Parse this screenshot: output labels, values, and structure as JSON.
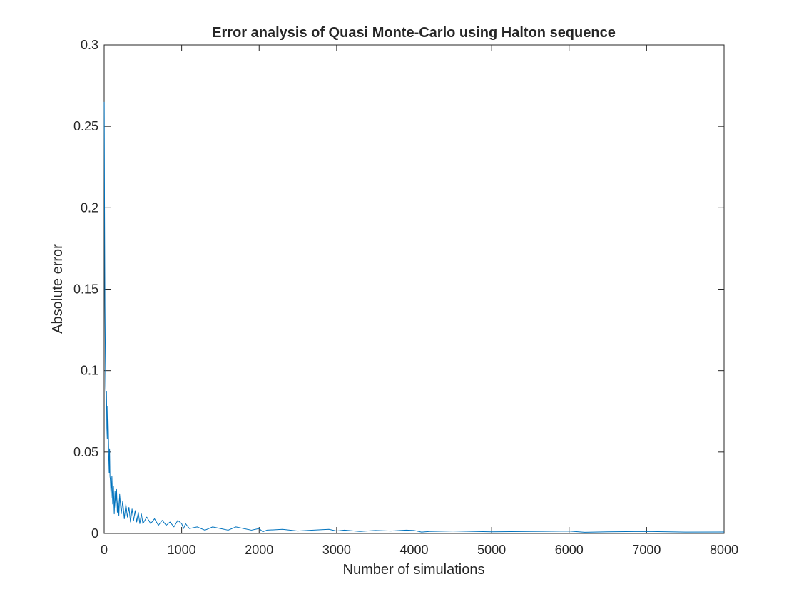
{
  "chart_data": {
    "type": "line",
    "title": "Error analysis of Quasi Monte-Carlo using Halton sequence",
    "xlabel": "Number of simulations",
    "ylabel": "Absolute error",
    "xlim": [
      0,
      8000
    ],
    "ylim": [
      0,
      0.3
    ],
    "grid": false,
    "legend": "none",
    "x_ticks": [
      0,
      1000,
      2000,
      3000,
      4000,
      5000,
      6000,
      7000,
      8000
    ],
    "x_tick_labels": [
      "0",
      "1000",
      "2000",
      "3000",
      "4000",
      "5000",
      "6000",
      "7000",
      "8000"
    ],
    "y_ticks": [
      0,
      0.05,
      0.1,
      0.15,
      0.2,
      0.25,
      0.3
    ],
    "y_tick_labels": [
      "0",
      "0.05",
      "0.1",
      "0.15",
      "0.2",
      "0.25",
      "0.3"
    ],
    "series": [
      {
        "color": "#0072BD",
        "x": [
          1,
          5,
          10,
          15,
          20,
          25,
          30,
          35,
          40,
          45,
          50,
          55,
          60,
          65,
          70,
          75,
          80,
          90,
          100,
          110,
          120,
          130,
          140,
          150,
          160,
          170,
          180,
          190,
          200,
          220,
          240,
          260,
          280,
          300,
          320,
          340,
          360,
          380,
          400,
          420,
          440,
          460,
          480,
          500,
          550,
          600,
          650,
          700,
          750,
          800,
          850,
          900,
          950,
          1000,
          1024,
          1050,
          1100,
          1200,
          1300,
          1400,
          1500,
          1600,
          1700,
          1800,
          1900,
          2000,
          2048,
          2100,
          2300,
          2500,
          2700,
          2900,
          3000,
          3100,
          3300,
          3500,
          3700,
          3900,
          4000,
          4096,
          4200,
          4500,
          5000,
          5500,
          6000,
          6200,
          6500,
          7000,
          7500,
          8000
        ],
        "values": [
          0.265,
          0.2,
          0.14,
          0.11,
          0.09,
          0.083,
          0.087,
          0.065,
          0.058,
          0.078,
          0.072,
          0.062,
          0.045,
          0.037,
          0.052,
          0.035,
          0.033,
          0.022,
          0.035,
          0.018,
          0.029,
          0.012,
          0.026,
          0.016,
          0.027,
          0.013,
          0.022,
          0.011,
          0.024,
          0.012,
          0.02,
          0.009,
          0.018,
          0.01,
          0.016,
          0.007,
          0.015,
          0.008,
          0.014,
          0.007,
          0.013,
          0.006,
          0.012,
          0.006,
          0.01,
          0.006,
          0.009,
          0.005,
          0.008,
          0.005,
          0.007,
          0.004,
          0.008,
          0.006,
          0.003,
          0.006,
          0.003,
          0.004,
          0.002,
          0.004,
          0.003,
          0.002,
          0.004,
          0.003,
          0.002,
          0.003,
          0.001,
          0.002,
          0.0025,
          0.0015,
          0.002,
          0.0025,
          0.0015,
          0.002,
          0.0012,
          0.0018,
          0.0015,
          0.002,
          0.0018,
          0.0008,
          0.0012,
          0.0015,
          0.001,
          0.0012,
          0.0014,
          0.0007,
          0.001,
          0.0012,
          0.0008,
          0.0009
        ]
      }
    ]
  }
}
